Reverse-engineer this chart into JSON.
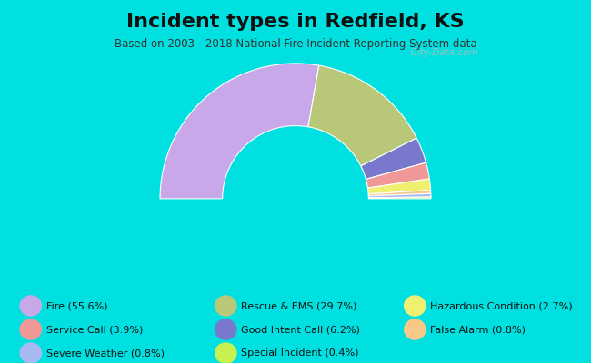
{
  "title": "Incident types in Redfield, KS",
  "subtitle": "Based on 2003 - 2018 National Fire Incident Reporting System data",
  "background_color": "#00e0e0",
  "chart_bg_color": "#deeacc",
  "watermark": "  City-Data.com",
  "segments": [
    {
      "label": "Fire",
      "pct": 55.6,
      "color": "#c8a8e8"
    },
    {
      "label": "Rescue & EMS",
      "pct": 29.7,
      "color": "#aec eighteen88"
    },
    {
      "label": "Good Intent Call",
      "pct": 6.2,
      "color": "#7878cc"
    },
    {
      "label": "Service Call",
      "pct": 3.9,
      "color": "#f09898"
    },
    {
      "label": "Hazardous Condition",
      "pct": 2.7,
      "color": "#f0f070"
    },
    {
      "label": "False Alarm",
      "pct": 0.8,
      "color": "#f8c888"
    },
    {
      "label": "Severe Weather",
      "pct": 0.8,
      "color": "#a8b8f0"
    },
    {
      "label": "Special Incident",
      "pct": 0.4,
      "color": "#c8f050"
    }
  ],
  "legend_items": [
    {
      "label": "Fire (55.6%)",
      "color": "#c8a8e8",
      "col": 0,
      "row": 0
    },
    {
      "label": "Service Call (3.9%)",
      "color": "#f09898",
      "col": 0,
      "row": 1
    },
    {
      "label": "Severe Weather (0.8%)",
      "color": "#a8b8f0",
      "col": 0,
      "row": 2
    },
    {
      "label": "Rescue & EMS (29.7%)",
      "color": "#b8c878",
      "col": 1,
      "row": 0
    },
    {
      "label": "Good Intent Call (6.2%)",
      "color": "#7878cc",
      "col": 1,
      "row": 1
    },
    {
      "label": "Special Incident (0.4%)",
      "color": "#c8f050",
      "col": 1,
      "row": 2
    },
    {
      "label": "Hazardous Condition (2.7%)",
      "color": "#f0f070",
      "col": 2,
      "row": 0
    },
    {
      "label": "False Alarm (0.8%)",
      "color": "#f8c888",
      "col": 2,
      "row": 1
    }
  ],
  "title_fontsize": 16,
  "subtitle_fontsize": 8.5,
  "legend_fontsize": 8,
  "figsize": [
    6.5,
    4.0
  ],
  "dpi": 100
}
